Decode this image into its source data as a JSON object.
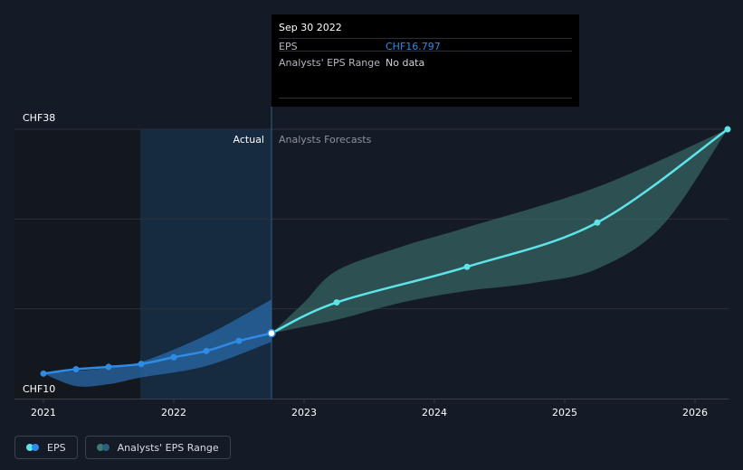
{
  "tooltip": {
    "date": "Sep 30 2022",
    "rows": [
      {
        "label": "EPS",
        "value": "CHF16.797"
      },
      {
        "label": "Analysts' EPS Range",
        "value": "No data"
      }
    ]
  },
  "legend": [
    {
      "label": "EPS",
      "colors": [
        "#2e8ce6",
        "#5ee3e8"
      ]
    },
    {
      "label": "Analysts' EPS Range",
      "colors": [
        "#2a5f7e",
        "#3d7a72"
      ]
    }
  ],
  "chart_data": {
    "type": "line",
    "y_tick_labels": [
      {
        "value": 38,
        "label": "CHF38"
      },
      {
        "value": 10,
        "label": "CHF10"
      }
    ],
    "ylim": [
      10,
      38
    ],
    "xlim": [
      2021.0,
      2026.25
    ],
    "x_tick_labels": [
      "2021",
      "2022",
      "2023",
      "2024",
      "2025",
      "2026"
    ],
    "region_labels": {
      "actual": "Actual",
      "forecast": "Analysts Forecasts"
    },
    "divider_x": 2022.75,
    "series": [
      {
        "kind": "actual",
        "color": "#2e8ce6",
        "points": [
          [
            2021.0,
            12.6
          ],
          [
            2021.25,
            13.05
          ],
          [
            2021.5,
            13.3
          ],
          [
            2021.75,
            13.6
          ],
          [
            2022.0,
            14.3
          ],
          [
            2022.25,
            14.95
          ],
          [
            2022.5,
            16.0
          ],
          [
            2022.75,
            16.797
          ]
        ]
      },
      {
        "kind": "forecast",
        "color": "#5ee3e8",
        "points": [
          [
            2022.75,
            16.797
          ],
          [
            2023.25,
            20.0
          ],
          [
            2024.25,
            23.7
          ],
          [
            2025.25,
            28.3
          ],
          [
            2026.25,
            38.0
          ]
        ]
      }
    ],
    "ranges": [
      {
        "kind": "actual",
        "color": "#2a6aa8",
        "upper": [
          [
            2021.0,
            12.6
          ],
          [
            2021.5,
            13.2
          ],
          [
            2021.75,
            13.8
          ],
          [
            2022.25,
            16.6
          ],
          [
            2022.75,
            20.3
          ]
        ],
        "lower": [
          [
            2021.0,
            12.6
          ],
          [
            2021.25,
            11.3
          ],
          [
            2021.5,
            11.5
          ],
          [
            2021.75,
            12.2
          ],
          [
            2022.25,
            13.4
          ],
          [
            2022.75,
            15.9
          ]
        ]
      },
      {
        "kind": "forecast",
        "color": "#3e7470",
        "upper": [
          [
            2022.75,
            16.797
          ],
          [
            2023.0,
            20.0
          ],
          [
            2023.25,
            23.3
          ],
          [
            2023.75,
            25.8
          ],
          [
            2024.25,
            27.8
          ],
          [
            2025.25,
            32.0
          ],
          [
            2026.25,
            38.0
          ]
        ],
        "lower": [
          [
            2022.75,
            16.797
          ],
          [
            2023.25,
            18.2
          ],
          [
            2023.75,
            20.0
          ],
          [
            2024.25,
            21.2
          ],
          [
            2024.75,
            22.0
          ],
          [
            2025.25,
            23.5
          ],
          [
            2025.75,
            28.0
          ],
          [
            2026.25,
            38.0
          ]
        ]
      }
    ],
    "grid": true
  }
}
